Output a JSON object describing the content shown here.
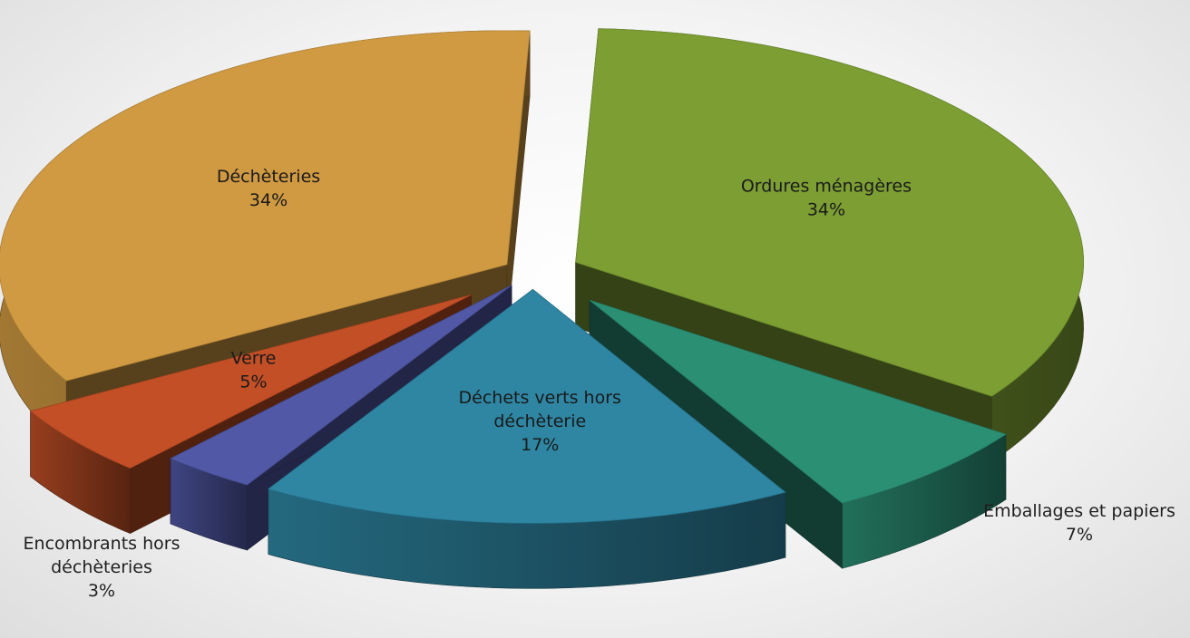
{
  "chart_data": {
    "type": "pie",
    "style": "3d-exploded",
    "title": "",
    "slices": [
      {
        "label": "Ordures ménagères",
        "label_lines": [
          "Ordures ménagères"
        ],
        "value": 34,
        "display": "34%",
        "color": "#7c9e33"
      },
      {
        "label": "Emballages et papiers",
        "label_lines": [
          "Emballages et papiers"
        ],
        "value": 7,
        "display": "7%",
        "color": "#2b8f74"
      },
      {
        "label": "Déchets verts hors déchèterie",
        "label_lines": [
          "Déchets verts hors",
          "déchèterie"
        ],
        "value": 17,
        "display": "17%",
        "color": "#2e86a3"
      },
      {
        "label": "Encombrants hors déchèteries",
        "label_lines": [
          "Encombrants hors",
          "déchèteries"
        ],
        "value": 3,
        "display": "3%",
        "color": "#5158a6"
      },
      {
        "label": "Verre",
        "label_lines": [
          "Verre"
        ],
        "value": 5,
        "display": "5%",
        "color": "#c24f26"
      },
      {
        "label": "Déchèteries",
        "label_lines": [
          "Déchèteries"
        ],
        "value": 34,
        "display": "34%",
        "color": "#d09a42"
      }
    ],
    "legend": "none",
    "label_position": "on slices (outside for small slices)"
  }
}
